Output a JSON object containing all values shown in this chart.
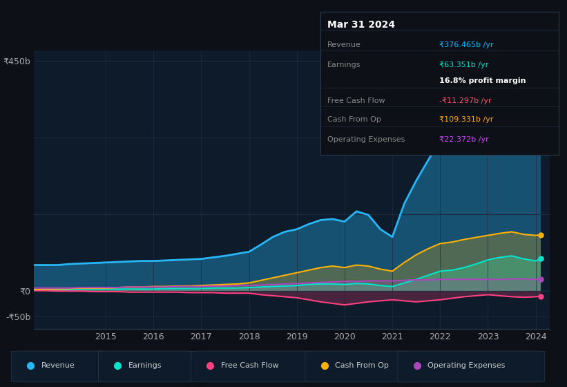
{
  "bg_color": "#0d1117",
  "plot_bg_color": "#0d1b2a",
  "grid_color": "#1e2d3d",
  "title_box": {
    "date": "Mar 31 2024",
    "rows": [
      {
        "label": "Revenue",
        "value": "₹376.465b /yr",
        "value_color": "#00bfff"
      },
      {
        "label": "Earnings",
        "value": "₹63.351b /yr",
        "value_color": "#00e5cc"
      },
      {
        "label": "",
        "value": "16.8% profit margin",
        "value_color": "#ffffff"
      },
      {
        "label": "Free Cash Flow",
        "value": "-₹11.297b /yr",
        "value_color": "#ff4d6d"
      },
      {
        "label": "Cash From Op",
        "value": "₹109.331b /yr",
        "value_color": "#ffaa00"
      },
      {
        "label": "Operating Expenses",
        "value": "₹22.372b /yr",
        "value_color": "#cc44ff"
      }
    ]
  },
  "years": [
    2013.25,
    2013.5,
    2013.75,
    2014.0,
    2014.25,
    2014.5,
    2014.75,
    2015.0,
    2015.25,
    2015.5,
    2015.75,
    2016.0,
    2016.25,
    2016.5,
    2016.75,
    2017.0,
    2017.25,
    2017.5,
    2017.75,
    2018.0,
    2018.25,
    2018.5,
    2018.75,
    2019.0,
    2019.25,
    2019.5,
    2019.75,
    2020.0,
    2020.25,
    2020.5,
    2020.75,
    2021.0,
    2021.25,
    2021.5,
    2021.75,
    2022.0,
    2022.25,
    2022.5,
    2022.75,
    2023.0,
    2023.25,
    2023.5,
    2023.75,
    2024.0,
    2024.1
  ],
  "revenue": [
    50,
    50,
    50,
    50,
    52,
    53,
    54,
    55,
    56,
    57,
    58,
    58,
    59,
    60,
    61,
    62,
    65,
    68,
    72,
    76,
    90,
    105,
    115,
    120,
    130,
    138,
    140,
    135,
    155,
    148,
    120,
    105,
    170,
    215,
    255,
    295,
    300,
    320,
    340,
    360,
    405,
    430,
    395,
    370,
    376
  ],
  "earnings": [
    2,
    2,
    2,
    2,
    2,
    3,
    3,
    3,
    3,
    3,
    3,
    3,
    4,
    4,
    4,
    4,
    5,
    5,
    5,
    6,
    7,
    8,
    9,
    10,
    12,
    13,
    13,
    12,
    14,
    13,
    10,
    8,
    15,
    22,
    30,
    38,
    40,
    45,
    52,
    60,
    65,
    68,
    62,
    58,
    63
  ],
  "free_cash_flow": [
    0,
    0,
    0,
    -1,
    -1,
    -1,
    -2,
    -2,
    -2,
    -3,
    -3,
    -3,
    -3,
    -3,
    -4,
    -4,
    -4,
    -5,
    -5,
    -5,
    -8,
    -10,
    -12,
    -14,
    -18,
    -22,
    -25,
    -28,
    -25,
    -22,
    -20,
    -18,
    -20,
    -22,
    -20,
    -18,
    -15,
    -12,
    -10,
    -8,
    -10,
    -12,
    -13,
    -12,
    -11
  ],
  "cash_from_op": [
    2,
    2,
    3,
    3,
    4,
    5,
    5,
    5,
    6,
    7,
    7,
    8,
    8,
    9,
    9,
    10,
    11,
    12,
    13,
    15,
    20,
    25,
    30,
    35,
    40,
    45,
    48,
    45,
    50,
    48,
    42,
    38,
    55,
    70,
    82,
    92,
    95,
    100,
    104,
    108,
    112,
    115,
    110,
    108,
    109
  ],
  "operating_expenses": [
    5,
    5,
    5,
    5,
    5,
    6,
    6,
    6,
    6,
    7,
    7,
    7,
    7,
    8,
    8,
    8,
    9,
    9,
    10,
    10,
    11,
    12,
    13,
    14,
    15,
    16,
    17,
    18,
    18,
    19,
    19,
    19,
    20,
    21,
    21,
    22,
    22,
    22,
    22,
    22,
    22,
    23,
    23,
    22,
    22
  ],
  "xlim": [
    2013.5,
    2024.3
  ],
  "ylim": [
    -75,
    470
  ],
  "yticks": [
    -50,
    0,
    150,
    300,
    450
  ],
  "ytick_labels": [
    "-₹50b",
    "₹0",
    "",
    "",
    "₹450b"
  ],
  "xticks": [
    2015,
    2016,
    2017,
    2018,
    2019,
    2020,
    2021,
    2022,
    2023,
    2024
  ],
  "colors": {
    "revenue": "#29b6f6",
    "earnings": "#00e5cc",
    "free_cash_flow": "#ff4081",
    "cash_from_op": "#ffb300",
    "operating_expenses": "#ab47bc"
  },
  "legend_items": [
    "Revenue",
    "Earnings",
    "Free Cash Flow",
    "Cash From Op",
    "Operating Expenses"
  ]
}
